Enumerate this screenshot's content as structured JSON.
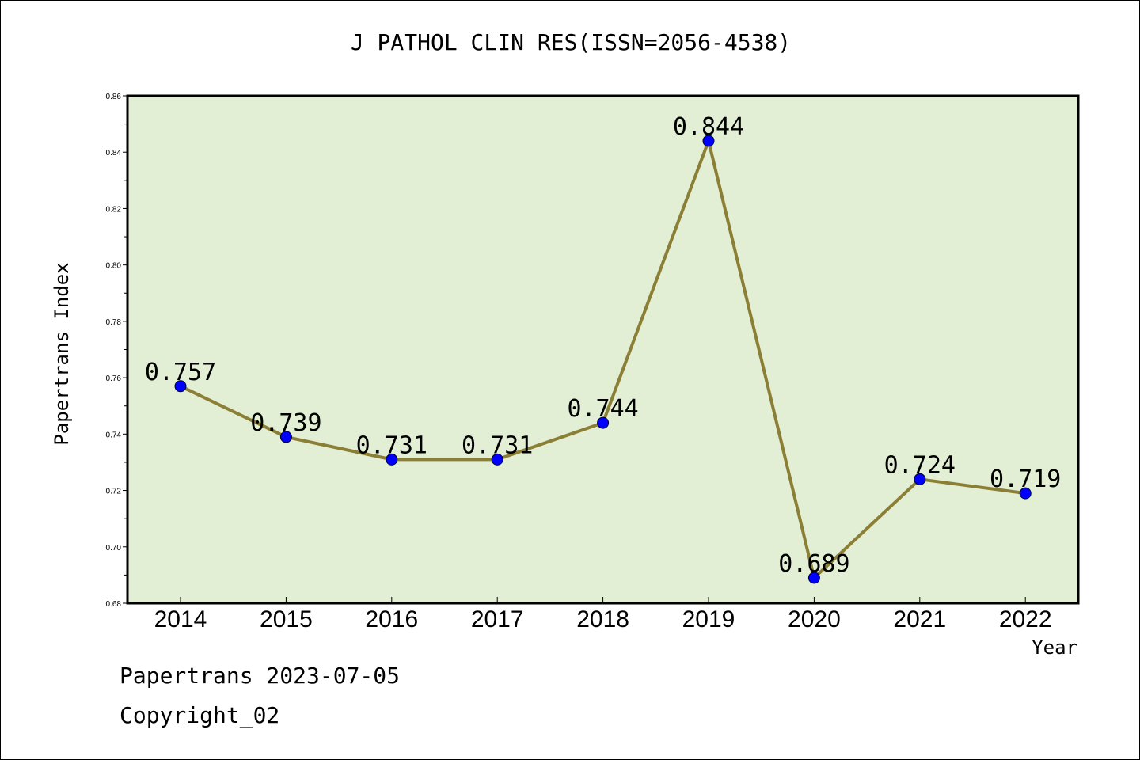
{
  "title": "J PATHOL CLIN RES(ISSN=2056-4538)",
  "footer": {
    "line1": "Papertrans 2023-07-05",
    "line2": "Copyright_02"
  },
  "colors": {
    "plot_background": "#e2efd5",
    "line": "#8b7e35",
    "marker": "#0000ff"
  },
  "chart_data": {
    "type": "line",
    "title": "J PATHOL CLIN RES(ISSN=2056-4538)",
    "xlabel": "Year",
    "ylabel": "Papertrans Index",
    "categories": [
      "2014",
      "2015",
      "2016",
      "2017",
      "2018",
      "2019",
      "2020",
      "2021",
      "2022"
    ],
    "series": [
      {
        "values": [
          0.757,
          0.739,
          0.731,
          0.731,
          0.744,
          0.844,
          0.689,
          0.724,
          0.719
        ],
        "labels": [
          "0.757",
          "0.739",
          "0.731",
          "0.731",
          "0.744",
          "0.844",
          "0.689",
          "0.724",
          "0.719"
        ]
      }
    ],
    "ylim": [
      0.68,
      0.86
    ],
    "yticks": [
      "0.68",
      "0.70",
      "0.72",
      "0.74",
      "0.76",
      "0.78",
      "0.80",
      "0.82",
      "0.84",
      "0.86"
    ],
    "grid": false,
    "legend": "none"
  }
}
